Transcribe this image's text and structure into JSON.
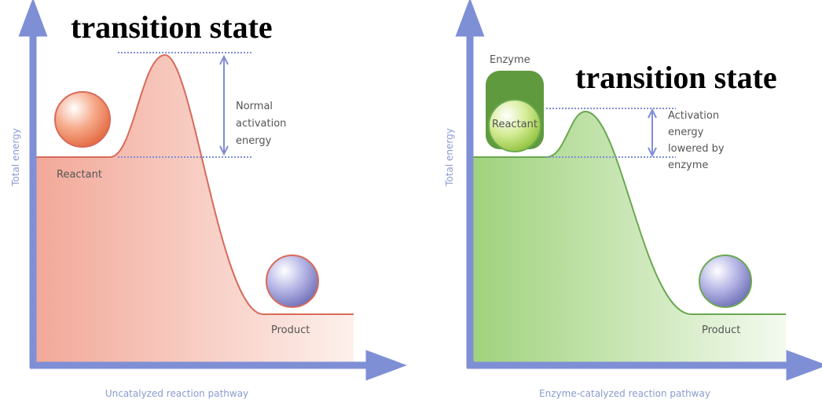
{
  "panels": [
    {
      "heading": "transition state",
      "y_axis_label": "Total energy",
      "x_axis_label": "Uncatalyzed reaction pathway",
      "reactant_label": "Reactant",
      "product_label": "Product",
      "activation_label": [
        "Normal",
        "activation",
        "energy"
      ]
    },
    {
      "heading": "transition state",
      "y_axis_label": "Total energy",
      "x_axis_label": "Enzyme-catalyzed reaction pathway",
      "enzyme_label": "Enzyme",
      "reactant_label": "Reactant",
      "product_label": "Product",
      "activation_label": [
        "Activation",
        "energy",
        "lowered by",
        "enzyme"
      ]
    }
  ]
}
